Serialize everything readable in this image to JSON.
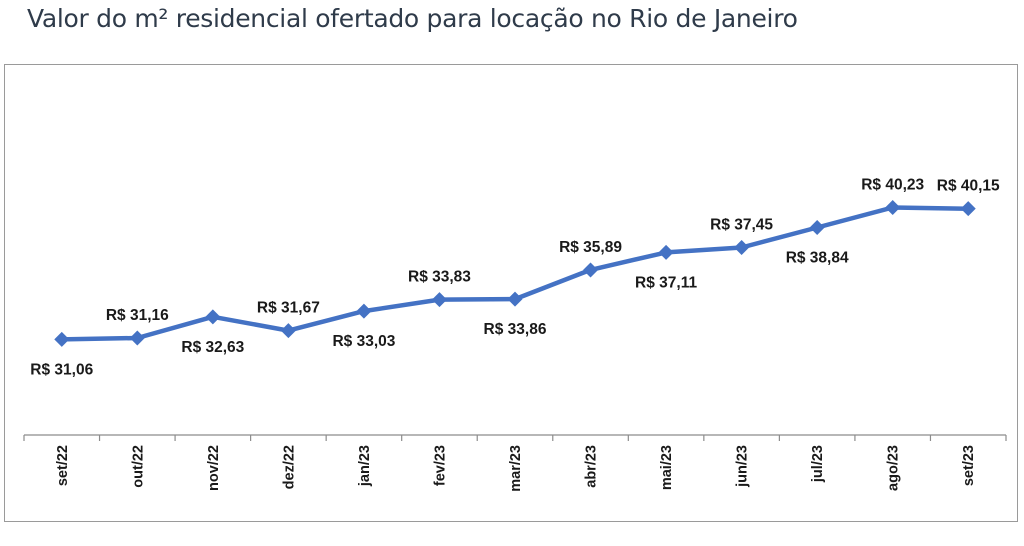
{
  "page": {
    "title": "Valor do m² residencial ofertado para locação no Rio de Janeiro"
  },
  "colors": {
    "series": "#4472c4",
    "axis": "#8c8c8c",
    "frame": "#9a9a9a",
    "text": "#1a1a1a"
  },
  "chart_data": {
    "type": "line",
    "title": "Valor do m² residencial ofertado para locação no Rio de Janeiro",
    "xlabel": "",
    "ylabel": "",
    "grid": false,
    "legend": "none",
    "categories": [
      "set/22",
      "out/22",
      "nov/22",
      "dez/22",
      "jan/23",
      "fev/23",
      "mar/23",
      "abr/23",
      "mai/23",
      "jun/23",
      "jul/23",
      "ago/23",
      "set/23"
    ],
    "series": [
      {
        "name": "Valor do m²",
        "values": [
          31.06,
          31.16,
          32.63,
          31.67,
          33.03,
          33.83,
          33.86,
          35.89,
          37.11,
          37.45,
          38.84,
          40.23,
          40.15
        ],
        "labels": [
          "R$ 31,06",
          "R$ 31,16",
          "R$ 32,63",
          "R$ 31,67",
          "R$ 33,03",
          "R$ 33,83",
          "R$ 33,86",
          "R$ 35,89",
          "R$ 37,11",
          "R$ 37,45",
          "R$ 38,84",
          "R$ 40,23",
          "R$ 40,15"
        ],
        "label_positions": [
          "below",
          "above",
          "below",
          "above",
          "below",
          "above",
          "below",
          "above",
          "below",
          "above",
          "below",
          "above",
          "above"
        ]
      }
    ],
    "ylim": [
      25,
      45
    ]
  }
}
